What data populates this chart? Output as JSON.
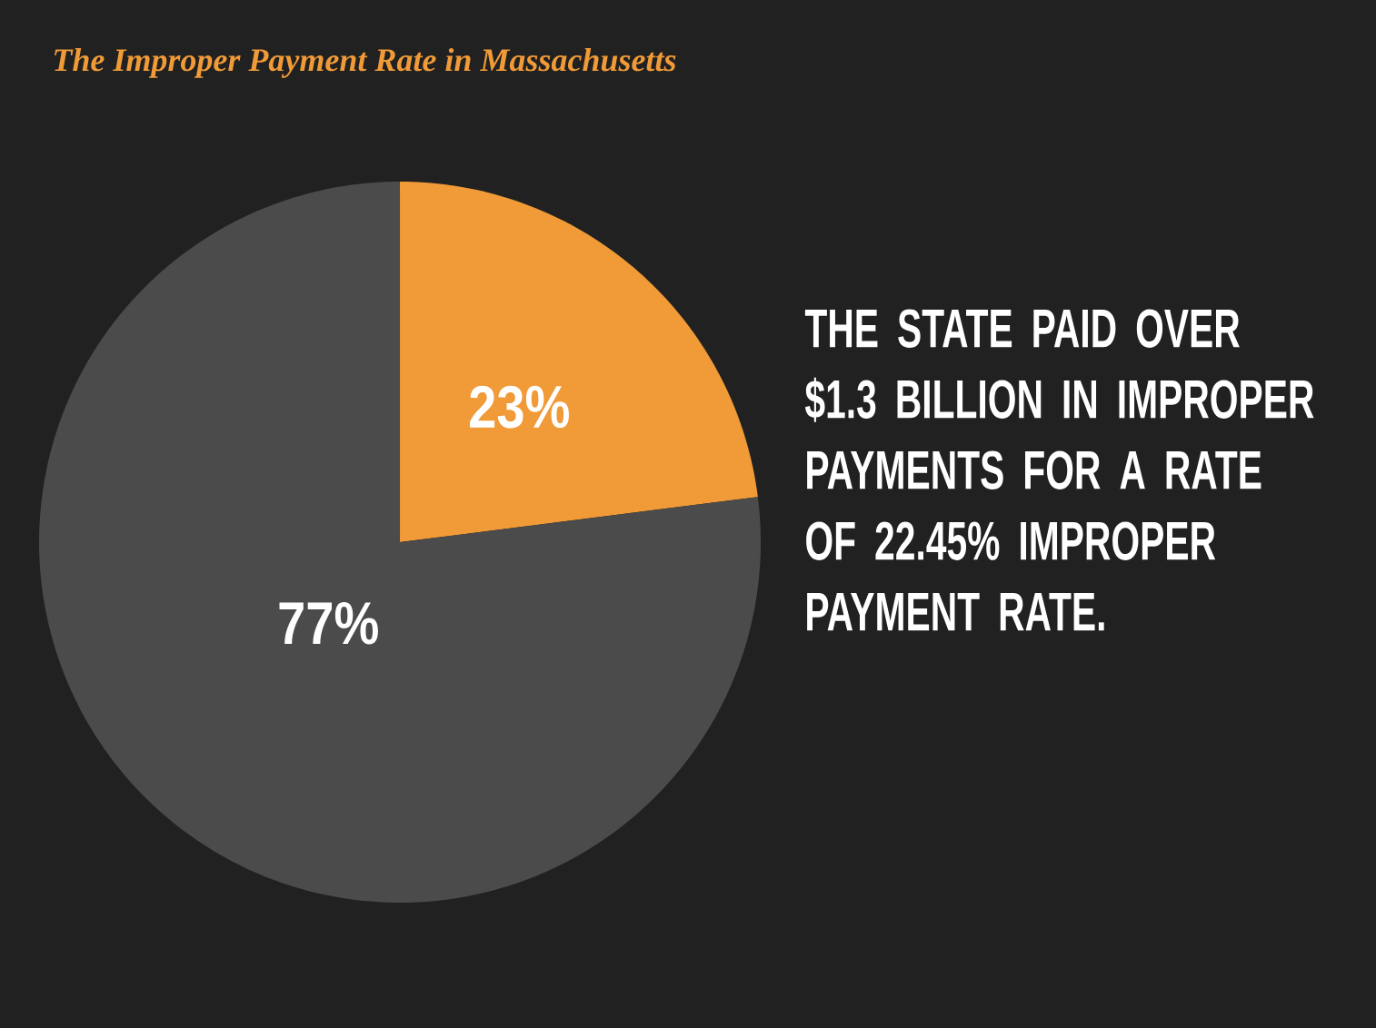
{
  "chart_data": {
    "type": "pie",
    "title": "The Improper Payment Rate in Massachusetts",
    "categories": [
      null,
      null
    ],
    "values": [
      23,
      77
    ],
    "colors": [
      "#f09a38",
      "#4a4b4a"
    ],
    "value_labels": [
      "23%",
      "77%"
    ],
    "annotations": [
      "THE STATE PAID OVER $1.3 BILLION IN IMPROPER PAYMENTS FOR A RATE OF 22.45% IMPROPER PAYMENT RATE."
    ]
  }
}
